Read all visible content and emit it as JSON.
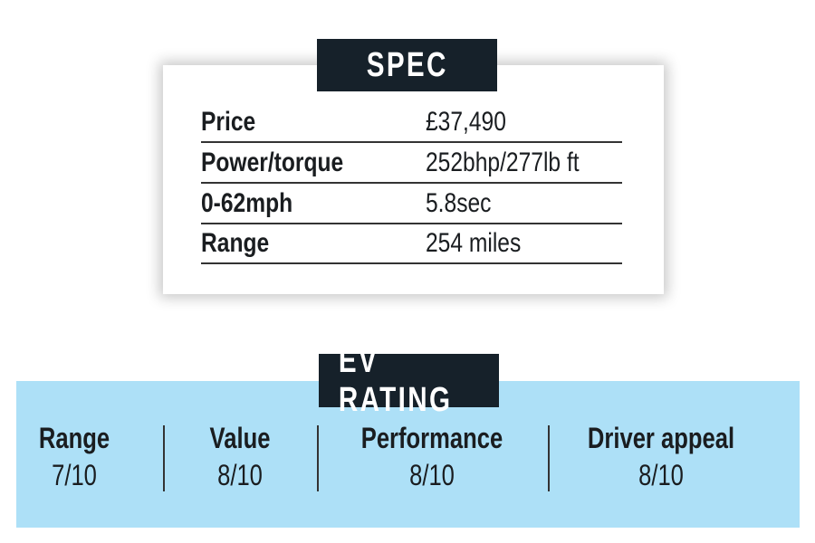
{
  "spec": {
    "title": "SPEC",
    "rows": [
      {
        "label": "Price",
        "value": "£37,490"
      },
      {
        "label": "Power/torque",
        "value": "252bhp/277lb ft"
      },
      {
        "label": "0-62mph",
        "value": "5.8sec"
      },
      {
        "label": "Range",
        "value": "254 miles"
      }
    ]
  },
  "ev_rating": {
    "title": "EV RATING",
    "background_color": "#ade0f7",
    "items": [
      {
        "label": "Range",
        "value": "7/10"
      },
      {
        "label": "Value",
        "value": "8/10"
      },
      {
        "label": "Performance",
        "value": "8/10"
      },
      {
        "label": "Driver appeal",
        "value": "8/10"
      }
    ]
  }
}
